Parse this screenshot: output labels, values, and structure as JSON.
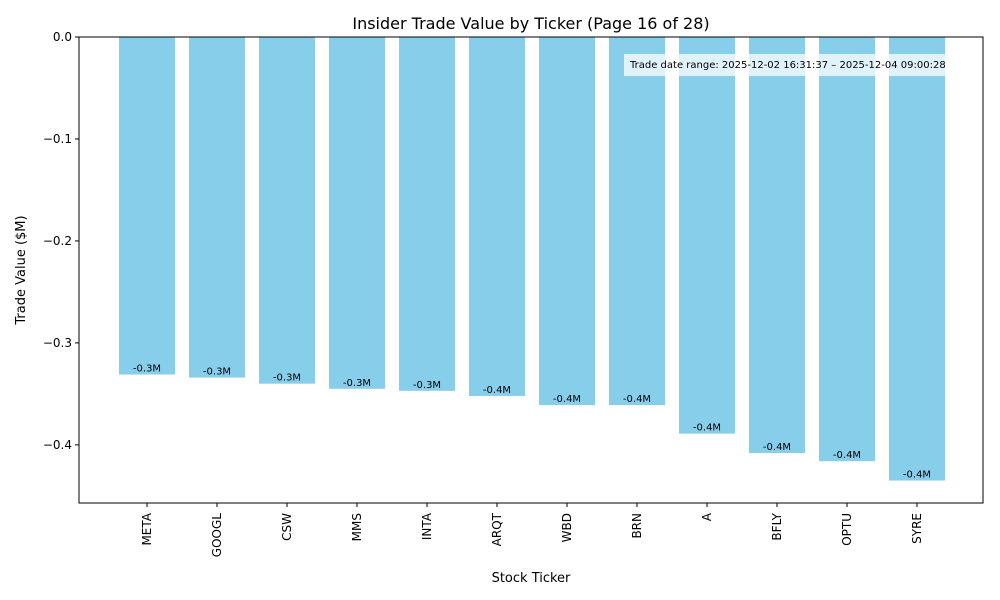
{
  "chart_data": {
    "type": "bar",
    "title": "Insider Trade Value by Ticker (Page 16 of 28)",
    "xlabel": "Stock Ticker",
    "ylabel": "Trade Value ($M)",
    "ylim": [
      -0.457,
      0.0
    ],
    "yticks": [
      0.0,
      -0.1,
      -0.2,
      -0.3,
      -0.4
    ],
    "ytick_labels": [
      "0.0",
      "−0.1",
      "−0.2",
      "−0.3",
      "−0.4"
    ],
    "categories": [
      "META",
      "GOOGL",
      "CSW",
      "MMS",
      "INTA",
      "ARQT",
      "WBD",
      "BRN",
      "A",
      "BFLY",
      "OPTU",
      "SYRE"
    ],
    "values": [
      -0.331,
      -0.334,
      -0.34,
      -0.345,
      -0.347,
      -0.352,
      -0.361,
      -0.361,
      -0.389,
      -0.408,
      -0.416,
      -0.435
    ],
    "data_labels": [
      "-0.3M",
      "-0.3M",
      "-0.3M",
      "-0.3M",
      "-0.3M",
      "-0.4M",
      "-0.4M",
      "-0.4M",
      "-0.4M",
      "-0.4M",
      "-0.4M",
      "-0.4M"
    ],
    "bar_color": "#87ceeb",
    "annotation": "Trade date range: 2025-12-02 16:31:37 – 2025-12-04 09:00:28",
    "legend": "none",
    "grid": false
  }
}
